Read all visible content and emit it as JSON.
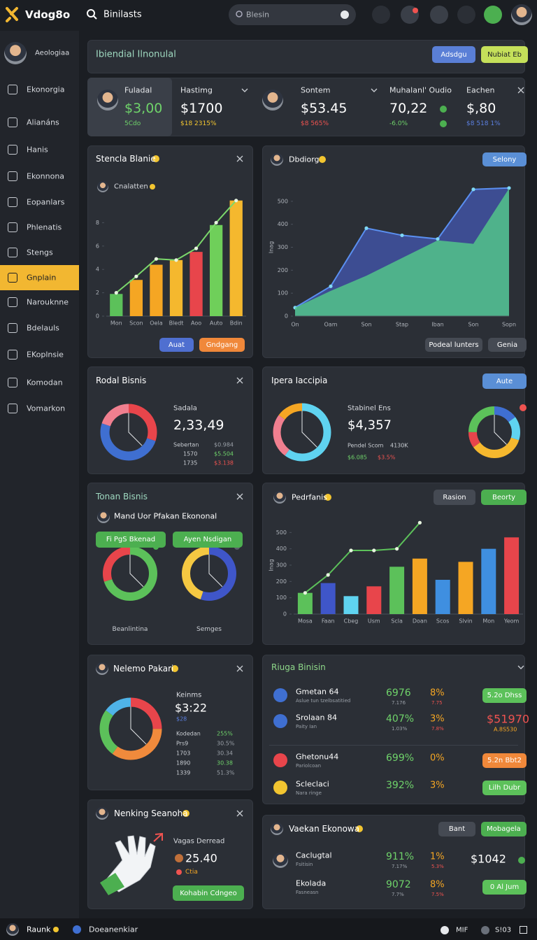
{
  "topbar": {
    "logo": "Vdog8o",
    "title": "Binilasts",
    "search": "Blesin"
  },
  "sidebar": {
    "user": "Aeologiaa",
    "items": [
      "Ekonorgia",
      "Alianáns",
      "Hanis",
      "Ekonnona",
      "Eopanlars",
      "Phlenatis",
      "Stengs",
      "Gnplain",
      "Narouknne",
      "Bdelauls",
      "EKoplnsie",
      "Komodan",
      "Vomarkon"
    ],
    "active": 7
  },
  "header": {
    "title": "Ibiendial Ilnonulal",
    "buttons": [
      "Adsdgu",
      "Nubiat Eb"
    ]
  },
  "stats": [
    {
      "label": "Fuladal",
      "value": "$3,00",
      "change": "5Cdo"
    },
    {
      "label": "Hastimg",
      "value": "$1700",
      "change": "$18 2315%"
    },
    {
      "label": "Sontem",
      "value": "$53.45",
      "change": "$8 565%"
    },
    {
      "label": "Muhalanl' Oudio",
      "value": "70,22",
      "change": "-6.0%"
    },
    {
      "label": "Eachen",
      "value": "$,80",
      "change": "$8 518 1%"
    }
  ],
  "stencla": {
    "title": "Stencla Blanie",
    "subtitle": "Cnalatten",
    "buttons": [
      "Auat",
      "Gndgang"
    ],
    "chart": {
      "type": "bar",
      "categories": [
        "Mon",
        "Scon",
        "Oela",
        "Bledt",
        "Aoo",
        "Auto",
        "Bdin"
      ],
      "values": [
        1.9,
        3.1,
        4.4,
        4.8,
        5.5,
        7.8,
        9.9
      ],
      "colors": [
        "#5cc15a",
        "#f5a623",
        "#f5a623",
        "#f5b82e",
        "#e8454b",
        "#6fcf5a",
        "#f5b82e"
      ],
      "line": [
        2.0,
        3.4,
        4.9,
        4.8,
        5.8,
        8.0,
        9.9
      ],
      "line_color": "#7bd86b",
      "ylim": [
        0,
        10
      ],
      "yticks": [
        0,
        2,
        4,
        6,
        8
      ]
    }
  },
  "dbdiorg": {
    "title": "Dbdiorg",
    "button": "Selony",
    "buttons": [
      "Podeal lunters",
      "Genia"
    ],
    "chart": {
      "type": "area",
      "ylabel": "Inag",
      "categories": [
        "On",
        "Oam",
        "Son",
        "Stap",
        "Iban",
        "Son",
        "Sopn"
      ],
      "series": [
        {
          "color": "#4a63d0",
          "values": [
            37,
            130,
            383,
            352,
            336,
            552,
            558
          ]
        },
        {
          "color": "#52c48a",
          "values": [
            37,
            110,
            176,
            253,
            330,
            315,
            556
          ]
        }
      ],
      "ylim": [
        0,
        600
      ],
      "yticks": [
        0,
        100,
        200,
        300,
        400,
        500
      ]
    }
  },
  "rodal": {
    "title": "Rodal Bisnis",
    "donut": {
      "type": "donut",
      "values": [
        30,
        50,
        20
      ],
      "colors": [
        "#e8454b",
        "#3f6fd1",
        "#f07f8f"
      ]
    },
    "label": "Sadala",
    "value": "2,33,49",
    "rows": [
      [
        "Sebertan",
        "$0.984"
      ],
      [
        "1570",
        "$5.504"
      ],
      [
        "1735",
        "$3.138"
      ]
    ]
  },
  "ipera": {
    "title": "Ipera Iaccipia",
    "button": "Aute",
    "donut": {
      "type": "donut",
      "values": [
        60,
        25,
        15
      ],
      "colors": [
        "#5fd3f0",
        "#f07f8f",
        "#f5a623"
      ]
    },
    "label": "Stabinel Ens",
    "value": "$4,357",
    "rows": [
      [
        "Pendel Scom",
        "4130K"
      ],
      [
        "$6.085",
        "$3.5%"
      ]
    ],
    "donut2": {
      "type": "donut",
      "values": [
        15,
        15,
        35,
        10,
        25
      ],
      "colors": [
        "#3f6fd1",
        "#5fd3f0",
        "#f5b82e",
        "#e8454b",
        "#5cc15a"
      ]
    }
  },
  "tonan": {
    "title": "Tonan Bisnis",
    "subtitle": "Mand Uor Pfakan Ekononal",
    "buttons": [
      "Fi PgS Bkenad",
      "Ayen Nsdigan"
    ],
    "donuts": [
      {
        "type": "donut",
        "label": "Beanlintina",
        "values": [
          70,
          30
        ],
        "colors": [
          "#5cc15a",
          "#e8454b"
        ]
      },
      {
        "type": "donut",
        "label": "Semges",
        "values": [
          55,
          45
        ],
        "colors": [
          "#3f56c9",
          "#f5c842"
        ]
      }
    ]
  },
  "pedrfanis": {
    "title": "Pedrfanis",
    "buttons": [
      "Rasion",
      "Beorty"
    ],
    "chart": {
      "type": "bar",
      "ylabel": "Inag",
      "categories": [
        "Mosa",
        "Faan",
        "Cbeg",
        "Usm",
        "Scla",
        "Doan",
        "Scos",
        "Slvin",
        "Mon",
        "Yeom"
      ],
      "values": [
        130,
        190,
        110,
        170,
        290,
        340,
        210,
        320,
        400,
        470
      ],
      "colors": [
        "#5cc15a",
        "#3f56c9",
        "#5fd3f0",
        "#e8454b",
        "#5cc15a",
        "#f5a623",
        "#3f8fe0",
        "#f5a623",
        "#3f8fe0",
        "#e8454b"
      ],
      "line": [
        130,
        240,
        390,
        390,
        400,
        560,
        null,
        null,
        null,
        null
      ],
      "line_color": "#5cc15a",
      "ylim": [
        0,
        600
      ],
      "yticks": [
        0,
        100,
        200,
        300,
        400,
        500
      ]
    }
  },
  "nelemo": {
    "title": "Nelemo Pakari",
    "donut": {
      "type": "donut",
      "values": [
        25,
        35,
        25,
        15
      ],
      "colors": [
        "#e8454b",
        "#f08a3c",
        "#5cc15a",
        "#4fb3e8"
      ]
    },
    "label": "Keinms",
    "value": "$3:22",
    "sub": "$28",
    "rows": [
      [
        "Kodedan",
        "255%"
      ],
      [
        "Prs9",
        "30.5%"
      ],
      [
        "1703",
        "30.34"
      ],
      [
        "1890",
        "30.38"
      ],
      [
        "1339",
        "51.3%"
      ]
    ]
  },
  "riuga": {
    "title": "Riuga Binisin",
    "rows": [
      {
        "name": "Gmetan 64",
        "sub": "Aslue tun tzelbsatitied",
        "pct": "6976",
        "pct_sub": "7.176",
        "share": "8%",
        "share_sub": "7.75",
        "action": "5.2o Dhss",
        "color": "#5cc15a",
        "icon": "#3f6fd1"
      },
      {
        "name": "Srolaan 84",
        "sub": "Paity Ian",
        "pct": "407%",
        "pct_sub": "1.03%",
        "share": "3%",
        "share_sub": "7.8%",
        "amount": "$51970",
        "amount_sub": "A.8S530",
        "icon": "#3f6fd1"
      },
      {
        "name": "Ghetonu44",
        "sub": "Pariolcoan",
        "pct": "699%",
        "share": "0%",
        "action": "5.2n Bbt2",
        "color": "#f0883a",
        "icon": "#e8454b"
      },
      {
        "name": "Scleclaci",
        "sub": "Nara ringe",
        "pct": "392%",
        "share": "3%",
        "action": "Lilh Dubr",
        "color": "#5cc15a",
        "icon": "#f2c530"
      }
    ]
  },
  "nenking": {
    "title": "Nenking Seanoha",
    "label": "Vagas Derread",
    "value": "25.40",
    "sub": "Ctia",
    "button": "Kohabin Cdngeo"
  },
  "vaekan": {
    "title": "Vaekan Ekonowa",
    "buttons": [
      "Bant",
      "Mobagela"
    ],
    "rows": [
      {
        "name": "Caclugtal",
        "sub": "Fsitisin",
        "pct": "911%",
        "pct_sub": "7.17%",
        "share": "1%",
        "share_sub": "5.3%",
        "amount": "$1042"
      },
      {
        "name": "Ekolada",
        "sub": "Fasneasn",
        "pct": "9072",
        "pct_sub": "7.7%",
        "share": "8%",
        "share_sub": "7.5%",
        "action": "0 Al Jum",
        "color": "#5cc15a"
      }
    ]
  },
  "bottombar": {
    "user": "Raunk",
    "app": "Doeanenkiar",
    "status": [
      "MIF",
      "S!03"
    ]
  }
}
